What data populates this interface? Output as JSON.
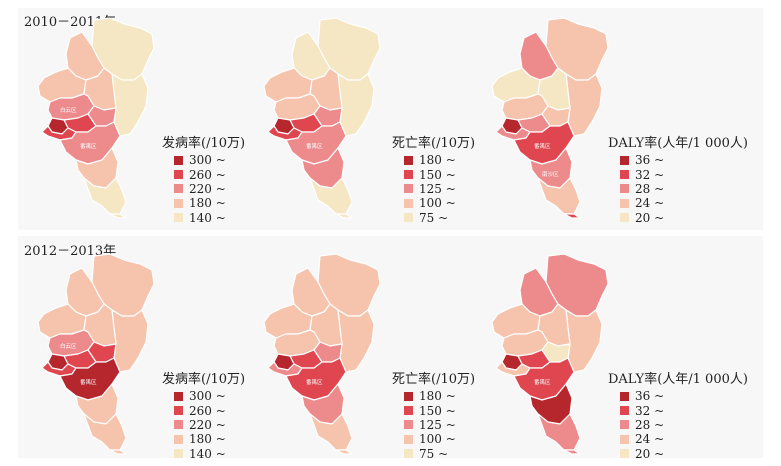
{
  "rows": [
    {
      "label": "2010－2011年",
      "maps": [
        {
          "legend_title": "发病率(/10万)",
          "levels": [
            "300 ~",
            "260 ~",
            "220 ~",
            "180 ~",
            "140 ~"
          ],
          "fills": [
            4,
            3,
            4,
            3,
            3,
            2,
            2,
            1,
            0,
            1,
            2,
            3,
            4,
            4
          ],
          "labels": {
            "baiyun": "白云区",
            "nansha": "",
            "panyu": "番禺区"
          }
        },
        {
          "legend_title": "死亡率(/10万)",
          "levels": [
            "180 ~",
            "150 ~",
            "125 ~",
            "100 ~",
            "75 ~"
          ],
          "fills": [
            4,
            4,
            4,
            3,
            3,
            3,
            2,
            1,
            0,
            1,
            2,
            2,
            4,
            4
          ],
          "labels": {
            "baiyun": "",
            "nansha": "",
            "panyu": "番禺区"
          }
        },
        {
          "legend_title": "DALY率(人年/1 000人)",
          "levels": [
            "36 ~",
            "32 ~",
            "28 ~",
            "24 ~",
            "20 ~"
          ],
          "fills": [
            3,
            2,
            3,
            4,
            4,
            3,
            3,
            2,
            0,
            2,
            1,
            2,
            3,
            1
          ],
          "labels": {
            "baiyun": "",
            "nansha": "南沙区",
            "panyu": "番禺区"
          }
        }
      ]
    },
    {
      "label": "2012－2013年",
      "maps": [
        {
          "legend_title": "发病率(/10万)",
          "levels": [
            "300 ~",
            "260 ~",
            "220 ~",
            "180 ~",
            "140 ~"
          ],
          "fills": [
            3,
            3,
            3,
            3,
            3,
            2,
            1,
            1,
            0,
            1,
            0,
            3,
            3,
            3
          ],
          "labels": {
            "baiyun": "白云区",
            "nansha": "",
            "panyu": "番禺区"
          }
        },
        {
          "legend_title": "死亡率(/10万)",
          "levels": [
            "180 ~",
            "150 ~",
            "125 ~",
            "100 ~",
            "75 ~"
          ],
          "fills": [
            3,
            3,
            3,
            3,
            3,
            3,
            2,
            1,
            0,
            2,
            1,
            2,
            3,
            3
          ],
          "labels": {
            "baiyun": "",
            "nansha": "",
            "panyu": "番禺区"
          }
        },
        {
          "legend_title": "DALY率(人年/1 000人)",
          "levels": [
            "36 ~",
            "32 ~",
            "28 ~",
            "24 ~",
            "20 ~"
          ],
          "fills": [
            2,
            2,
            3,
            3,
            3,
            3,
            4,
            1,
            0,
            3,
            1,
            0,
            2,
            2
          ],
          "labels": {
            "baiyun": "",
            "nansha": "",
            "panyu": "番禺区"
          }
        }
      ]
    }
  ],
  "colors": [
    "#b5262d",
    "#e0464f",
    "#ec8a8c",
    "#f6c3ac",
    "#f5e6c4"
  ],
  "icons": {
    "legend_swatch": "square"
  }
}
